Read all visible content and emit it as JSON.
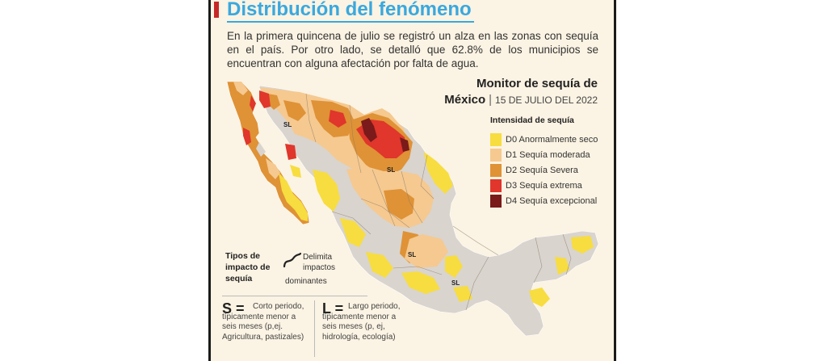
{
  "title": "Distribución del fenómeno",
  "intro": "En la primera quincena de julio se registró un alza en las zonas con sequía en el país. Por otro lado, se detalló que 62.8% de los municipios se encuentran con alguna afectación por falta de agua.",
  "map_title": {
    "line1": "Monitor de sequía de",
    "line2": "México",
    "date": "15 DE JULIO DEL 2022"
  },
  "legend": {
    "title": "Intensidad de sequía",
    "items": [
      {
        "label": "D0 Anormalmente seco",
        "color": "#f7dd3f"
      },
      {
        "label": "D1 Sequía moderada",
        "color": "#f5c990"
      },
      {
        "label": "D2 Sequía Severa",
        "color": "#df9236"
      },
      {
        "label": "D3 Sequía extrema",
        "color": "#e0362b"
      },
      {
        "label": "D4 Sequía excepcional",
        "color": "#7a1a1a"
      }
    ]
  },
  "map_labels": {
    "sl1": "SL",
    "sl2": "SL",
    "sl3": "SL",
    "sl4": "SL"
  },
  "impact_types": {
    "title": "Tipos de impacto de sequía",
    "delimita_line1": "Delimita impactos",
    "delimita_line2": "dominantes",
    "short_letter": "S =",
    "short_text": "Corto periodo, típicamente menor a seis meses (p,ej. Agricultura, pastizales)",
    "long_letter": "L =",
    "long_text": "Largo periodo, típicamente menor a seis meses (p, ej, hidrología, ecología)"
  },
  "colors": {
    "panel_bg": "#fbf3e3",
    "title_blue": "#3aa8de",
    "accent_red": "#c62828",
    "no_drought": "#d9d4ce"
  }
}
